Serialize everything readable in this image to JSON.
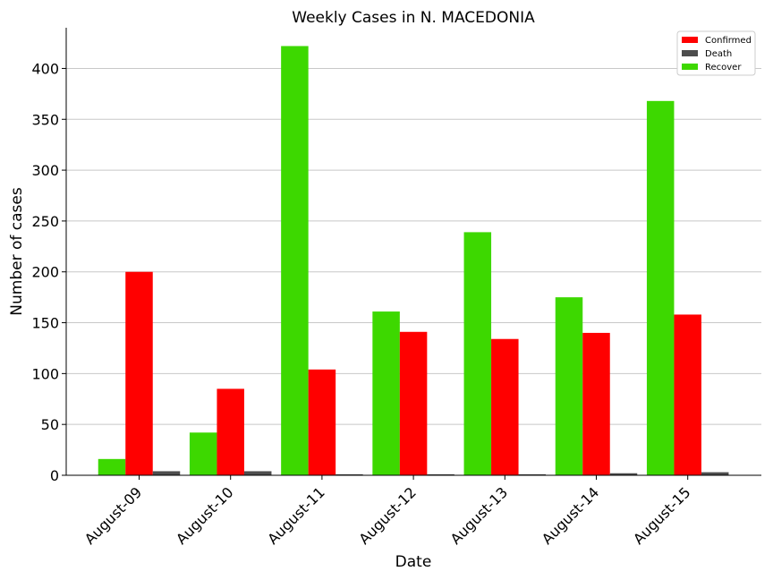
{
  "chart_data": {
    "type": "bar",
    "title": "Weekly Cases in N. MACEDONIA",
    "xlabel": "Date",
    "ylabel": "Number of cases",
    "ylim": [
      0,
      440
    ],
    "yticks": [
      "0",
      "50",
      "100",
      "150",
      "200",
      "250",
      "300",
      "350",
      "400"
    ],
    "grid": "horizontal",
    "legend_position": "top-right",
    "categories": [
      "August-09",
      "August-10",
      "August-11",
      "August-12",
      "August-13",
      "August-14",
      "August-15"
    ],
    "series": [
      {
        "name": "Recover",
        "color": "#3dd800",
        "values": [
          16,
          42,
          422,
          161,
          239,
          175,
          368
        ]
      },
      {
        "name": "Confirmed",
        "color": "#ff0000",
        "values": [
          200,
          85,
          104,
          141,
          134,
          140,
          158
        ]
      },
      {
        "name": "Death",
        "color": "#4d4d4d",
        "values": [
          4,
          4,
          1,
          1,
          1,
          2,
          3
        ]
      }
    ],
    "legend": [
      "Confirmed",
      "Death",
      "Recover"
    ]
  }
}
